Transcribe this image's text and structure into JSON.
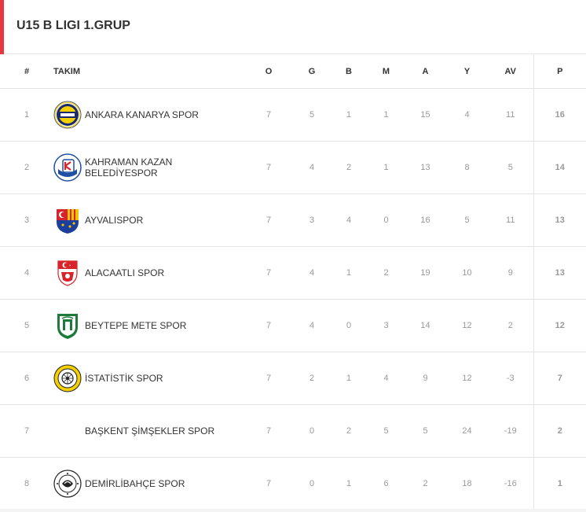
{
  "header": {
    "title": "U15 B LIGI 1.GRUP"
  },
  "table": {
    "columns": [
      "#",
      "TAKIM",
      "O",
      "G",
      "B",
      "M",
      "A",
      "Y",
      "AV",
      "P"
    ],
    "rows": [
      {
        "rank": "1",
        "team": "ANKARA KANARYA SPOR",
        "logo": "kanarya-logo",
        "o": "7",
        "g": "5",
        "b": "1",
        "m": "1",
        "a": "15",
        "y": "4",
        "av": "11",
        "p": "16"
      },
      {
        "rank": "2",
        "team": "KAHRAMAN KAZAN BELEDİYESPOR",
        "logo": "kazan-logo",
        "o": "7",
        "g": "4",
        "b": "2",
        "m": "1",
        "a": "13",
        "y": "8",
        "av": "5",
        "p": "14"
      },
      {
        "rank": "3",
        "team": "AYVALISPOR",
        "logo": "ayvalik-logo",
        "o": "7",
        "g": "3",
        "b": "4",
        "m": "0",
        "a": "16",
        "y": "5",
        "av": "11",
        "p": "13"
      },
      {
        "rank": "4",
        "team": "ALACAATLI SPOR",
        "logo": "turkish-crest-logo",
        "o": "7",
        "g": "4",
        "b": "1",
        "m": "2",
        "a": "19",
        "y": "10",
        "av": "9",
        "p": "13"
      },
      {
        "rank": "5",
        "team": "BEYTEPE METE SPOR",
        "logo": "beytepe-logo",
        "o": "7",
        "g": "4",
        "b": "0",
        "m": "3",
        "a": "14",
        "y": "12",
        "av": "2",
        "p": "12"
      },
      {
        "rank": "6",
        "team": "İSTATİSTİK SPOR",
        "logo": "istatistik-logo",
        "o": "7",
        "g": "2",
        "b": "1",
        "m": "4",
        "a": "9",
        "y": "12",
        "av": "-3",
        "p": "7"
      },
      {
        "rank": "7",
        "team": "BAŞKENT ŞİMŞEKLER SPOR",
        "logo": "",
        "o": "7",
        "g": "0",
        "b": "2",
        "m": "5",
        "a": "5",
        "y": "24",
        "av": "-19",
        "p": "2"
      },
      {
        "rank": "8",
        "team": "DEMİRLİBAHÇE SPOR",
        "logo": "demirlibahce-logo",
        "o": "7",
        "g": "0",
        "b": "1",
        "m": "6",
        "a": "2",
        "y": "18",
        "av": "-16",
        "p": "1"
      }
    ]
  },
  "colors": {
    "accent": "#e8373e",
    "border": "#e3e3e3",
    "muted": "#999999",
    "text": "#333333"
  }
}
